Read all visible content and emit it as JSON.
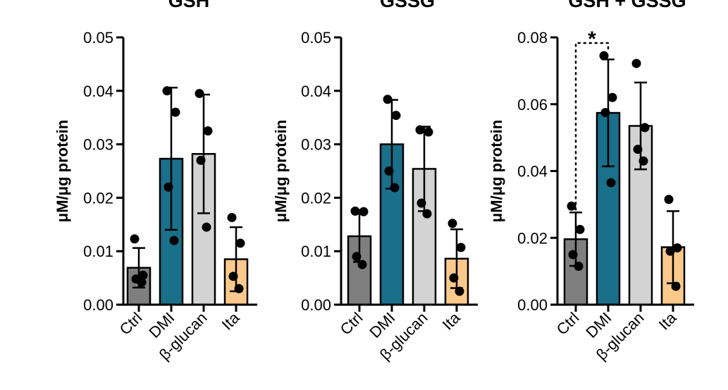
{
  "chart_data": [
    {
      "type": "bar",
      "title": "GSH",
      "ylabel": "μM/μg protein",
      "ylim": [
        0,
        0.05
      ],
      "yticks": [
        "0.00",
        "0.01",
        "0.02",
        "0.03",
        "0.04",
        "0.05"
      ],
      "categories": [
        "Ctrl",
        "DMI",
        "β-glucan",
        "Ita"
      ],
      "values": [
        0.0069,
        0.0273,
        0.0282,
        0.0085
      ],
      "sd": [
        0.0037,
        0.0133,
        0.0111,
        0.006
      ],
      "colors": [
        "#7f7f7f",
        "#1a6f8a",
        "#d3d3d3",
        "#fcc98c"
      ],
      "points": [
        [
          0.0123,
          0.0055,
          0.0048,
          0.0042
        ],
        [
          0.04,
          0.036,
          0.022,
          0.012
        ],
        [
          0.0395,
          0.0325,
          0.027,
          0.0145
        ],
        [
          0.0163,
          0.0115,
          0.0053,
          0.003
        ]
      ],
      "significance": null
    },
    {
      "type": "bar",
      "title": "GSSG",
      "ylabel": "μM/μg protein",
      "ylim": [
        0,
        0.05
      ],
      "yticks": [
        "0.00",
        "0.01",
        "0.02",
        "0.03",
        "0.04",
        "0.05"
      ],
      "categories": [
        "Ctrl",
        "DMI",
        "β-glucan",
        "Ita"
      ],
      "values": [
        0.0128,
        0.03,
        0.0254,
        0.0086
      ],
      "sd": [
        0.0048,
        0.0083,
        0.0079,
        0.0055
      ],
      "colors": [
        "#7f7f7f",
        "#1a6f8a",
        "#d3d3d3",
        "#fcc98c"
      ],
      "points": [
        [
          0.0175,
          0.0174,
          0.009,
          0.0075
        ],
        [
          0.0384,
          0.0354,
          0.025,
          0.0219
        ],
        [
          0.0327,
          0.0323,
          0.019,
          0.017
        ],
        [
          0.0152,
          0.0107,
          0.005,
          0.0025
        ]
      ],
      "significance": null
    },
    {
      "type": "bar",
      "title": "GSH + GSSG",
      "ylabel": "μM/μg protein",
      "ylim": [
        0,
        0.08
      ],
      "yticks": [
        "0.00",
        "0.02",
        "0.04",
        "0.06",
        "0.08"
      ],
      "categories": [
        "Ctrl",
        "DMI",
        "β-glucan",
        "Ita"
      ],
      "values": [
        0.0196,
        0.0574,
        0.0535,
        0.0172
      ],
      "sd": [
        0.008,
        0.016,
        0.013,
        0.0108
      ],
      "colors": [
        "#7f7f7f",
        "#1a6f8a",
        "#d3d3d3",
        "#fcc98c"
      ],
      "points": [
        [
          0.0295,
          0.0225,
          0.015,
          0.0115
        ],
        [
          0.0745,
          0.062,
          0.0575,
          0.0365
        ],
        [
          0.0722,
          0.053,
          0.0465,
          0.043
        ],
        [
          0.0315,
          0.017,
          0.016,
          0.0055
        ]
      ],
      "significance": {
        "pair": [
          "Ctrl",
          "DMI"
        ],
        "label": "*"
      }
    }
  ]
}
